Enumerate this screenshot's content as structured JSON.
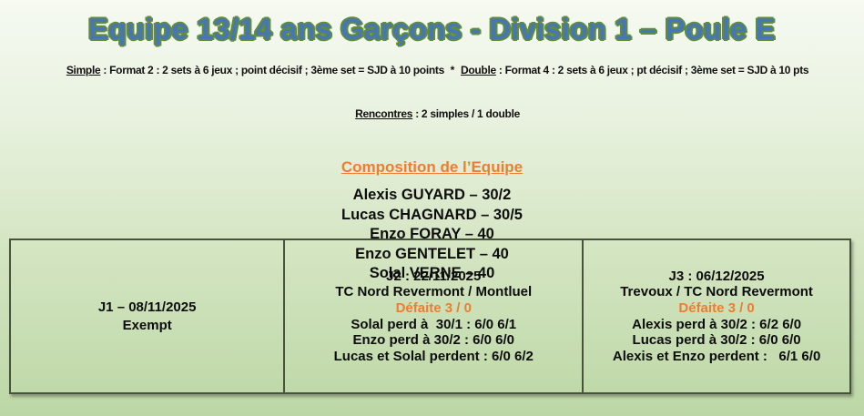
{
  "colors": {
    "title_fill": "#4677b2",
    "title_outline": "#618c3d",
    "accent_orange": "#ed7d31",
    "background_top": "#f6faf2",
    "background_bottom": "#bcd7a5",
    "table_border": "#47533c",
    "text": "#000000"
  },
  "header": {
    "title": "Equipe 13/14 ans Garçons - Division 1 – Poule E"
  },
  "rules": {
    "simple_label": "Simple",
    "simple_text": " : Format 2 : 2 sets à 6 jeux ; point décisif ; 3ème set = SJD à 10 points",
    "separator": "  *  ",
    "double_label": "Double",
    "double_text": " : Format 4 : 2 sets à 6 jeux ; pt décisif ; 3ème set = SJD à 10 pts",
    "rencontres_label": "Rencontres",
    "rencontres_text": " : 2 simples / 1 double"
  },
  "composition": {
    "heading": "Composition de l’Equipe",
    "players": [
      "Alexis GUYARD – 30/2",
      "Lucas CHAGNARD – 30/5",
      "Enzo FORAY – 40",
      "Enzo GENTELET – 40",
      "Solal VERNE – 40"
    ]
  },
  "schedule": {
    "j1": {
      "date": "J1 – 08/11/2025",
      "status": "Exempt"
    },
    "j2": {
      "date": "J2 : 22/11/2025",
      "fixture": "TC Nord Revermont / Montluel",
      "result": "Défaite 3 / 0",
      "matches": [
        "Solal perd à  30/1 : 6/0 6/1",
        "Enzo perd à 30/2 : 6/0 6/0",
        "Lucas et Solal perdent : 6/0 6/2"
      ]
    },
    "j3": {
      "date": "J3 : 06/12/2025",
      "fixture": "Trevoux / TC Nord Revermont",
      "result": "Défaite 3 / 0",
      "matches": [
        "Alexis perd à 30/2 : 6/2 6/0",
        "Lucas perd à 30/2 : 6/0 6/0",
        "Alexis et Enzo perdent :   6/1 6/0"
      ]
    }
  }
}
